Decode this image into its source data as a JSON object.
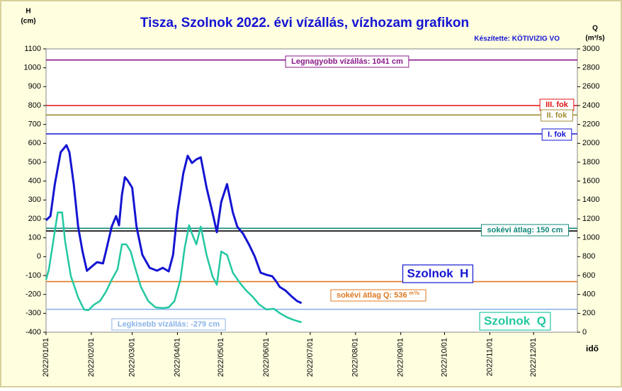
{
  "chart_data": {
    "type": "line",
    "title": "Tisza, Szolnok 2022. évi vízállás, vízhozam  grafikon",
    "subtitle": "Készítette: KÖTIVIZIG VO",
    "y_label": [
      "H",
      "(cm)"
    ],
    "y2_label": [
      "Q",
      "(m³/s)"
    ],
    "x_label": "idő",
    "xlim": [
      "2022/01/01",
      "2022/12/31"
    ],
    "xticks": [
      "2022/01/01",
      "2022/02/01",
      "2022/03/01",
      "2022/04/01",
      "2022/05/01",
      "2022/06/01",
      "2022/07/01",
      "2022/08/01",
      "2022/09/01",
      "2022/10/01",
      "2022/11/01",
      "2022/12/01"
    ],
    "ylim": [
      -400,
      1100
    ],
    "yticks": [
      -400,
      -300,
      -200,
      -100,
      0,
      100,
      200,
      300,
      400,
      500,
      600,
      700,
      800,
      900,
      1000,
      1100
    ],
    "y2lim": [
      0,
      3000
    ],
    "y2ticks": [
      0,
      200,
      400,
      600,
      800,
      1000,
      1200,
      1400,
      1600,
      1800,
      2000,
      2200,
      2400,
      2600,
      2800,
      3000
    ],
    "series": [
      {
        "name": "Szolnok  H",
        "color": "#1414d2",
        "x": [
          "2022/01/01",
          "2022/01/04",
          "2022/01/07",
          "2022/01/11",
          "2022/01/15",
          "2022/01/17",
          "2022/01/20",
          "2022/01/23",
          "2022/01/26",
          "2022/01/29",
          "2022/02/02",
          "2022/02/05",
          "2022/02/09",
          "2022/02/11",
          "2022/02/15",
          "2022/02/18",
          "2022/02/20",
          "2022/02/22",
          "2022/02/24",
          "2022/02/26",
          "2022/03/01",
          "2022/03/04",
          "2022/03/08",
          "2022/03/13",
          "2022/03/18",
          "2022/03/22",
          "2022/03/26",
          "2022/03/29",
          "2022/04/01",
          "2022/04/05",
          "2022/04/08",
          "2022/04/11",
          "2022/04/14",
          "2022/04/17",
          "2022/04/21",
          "2022/04/25",
          "2022/04/28",
          "2022/05/01",
          "2022/05/05",
          "2022/05/09",
          "2022/05/12",
          "2022/05/16",
          "2022/05/20",
          "2022/05/24",
          "2022/05/28",
          "2022/06/01",
          "2022/06/05",
          "2022/06/08",
          "2022/06/10",
          "2022/06/14",
          "2022/06/18",
          "2022/06/22",
          "2022/06/25"
        ],
        "values": [
          192,
          215,
          384,
          552,
          590,
          552,
          384,
          159,
          27,
          -75,
          -48,
          -29,
          -36,
          27,
          159,
          215,
          166,
          327,
          421,
          402,
          365,
          159,
          9,
          -59,
          -74,
          -59,
          -78,
          9,
          234,
          440,
          534,
          496,
          515,
          526,
          365,
          234,
          129,
          290,
          384,
          234,
          159,
          121,
          65,
          1,
          -85,
          -96,
          -104,
          -134,
          -160,
          -179,
          -209,
          -235,
          -246
        ]
      },
      {
        "name": "Szolnok  Q",
        "color": "#22c8a0",
        "axis": "y2",
        "x": [
          "2022/01/01",
          "2022/01/03",
          "2022/01/06",
          "2022/01/09",
          "2022/01/12",
          "2022/01/14",
          "2022/01/18",
          "2022/01/23",
          "2022/01/27",
          "2022/01/30",
          "2022/02/03",
          "2022/02/07",
          "2022/02/11",
          "2022/02/15",
          "2022/02/19",
          "2022/02/22",
          "2022/02/25",
          "2022/02/28",
          "2022/03/03",
          "2022/03/07",
          "2022/03/12",
          "2022/03/17",
          "2022/03/22",
          "2022/03/26",
          "2022/03/30",
          "2022/04/03",
          "2022/04/06",
          "2022/04/09",
          "2022/04/11",
          "2022/04/14",
          "2022/04/17",
          "2022/04/21",
          "2022/04/25",
          "2022/04/28",
          "2022/05/01",
          "2022/05/05",
          "2022/05/09",
          "2022/05/14",
          "2022/05/18",
          "2022/05/23",
          "2022/05/27",
          "2022/06/01",
          "2022/06/06",
          "2022/06/10",
          "2022/06/15",
          "2022/06/20",
          "2022/06/25"
        ],
        "values": [
          555,
          668,
          968,
          1268,
          1268,
          968,
          593,
          368,
          240,
          233,
          293,
          330,
          428,
          555,
          668,
          930,
          930,
          855,
          683,
          480,
          330,
          263,
          255,
          263,
          330,
          555,
          893,
          1133,
          1043,
          930,
          1118,
          818,
          593,
          503,
          855,
          818,
          630,
          518,
          443,
          368,
          293,
          240,
          248,
          203,
          158,
          128,
          105
        ]
      }
    ],
    "reference_lines": [
      {
        "value": 1041,
        "label": "Legnagyobb vízállás: 1041 cm",
        "color": "#8a1a8a"
      },
      {
        "value": 800,
        "label": "III. fok",
        "color": "#e01010"
      },
      {
        "value": 750,
        "label": "II. fok",
        "color": "#a08c30"
      },
      {
        "value": 650,
        "label": "I. fok",
        "color": "#1414d2"
      },
      {
        "value": 150,
        "label": "sokévi átlag: 150 cm",
        "color": "#108878"
      },
      {
        "value": 136,
        "color": "#000000"
      },
      {
        "value": 536,
        "axis": "y2",
        "label": "sokévi átlag Q: 536",
        "unit": "m³/s",
        "color": "#e07820"
      },
      {
        "value": -279,
        "label": "Legkisebb vízállás: -279 cm",
        "color": "#8ab4e8"
      }
    ]
  }
}
